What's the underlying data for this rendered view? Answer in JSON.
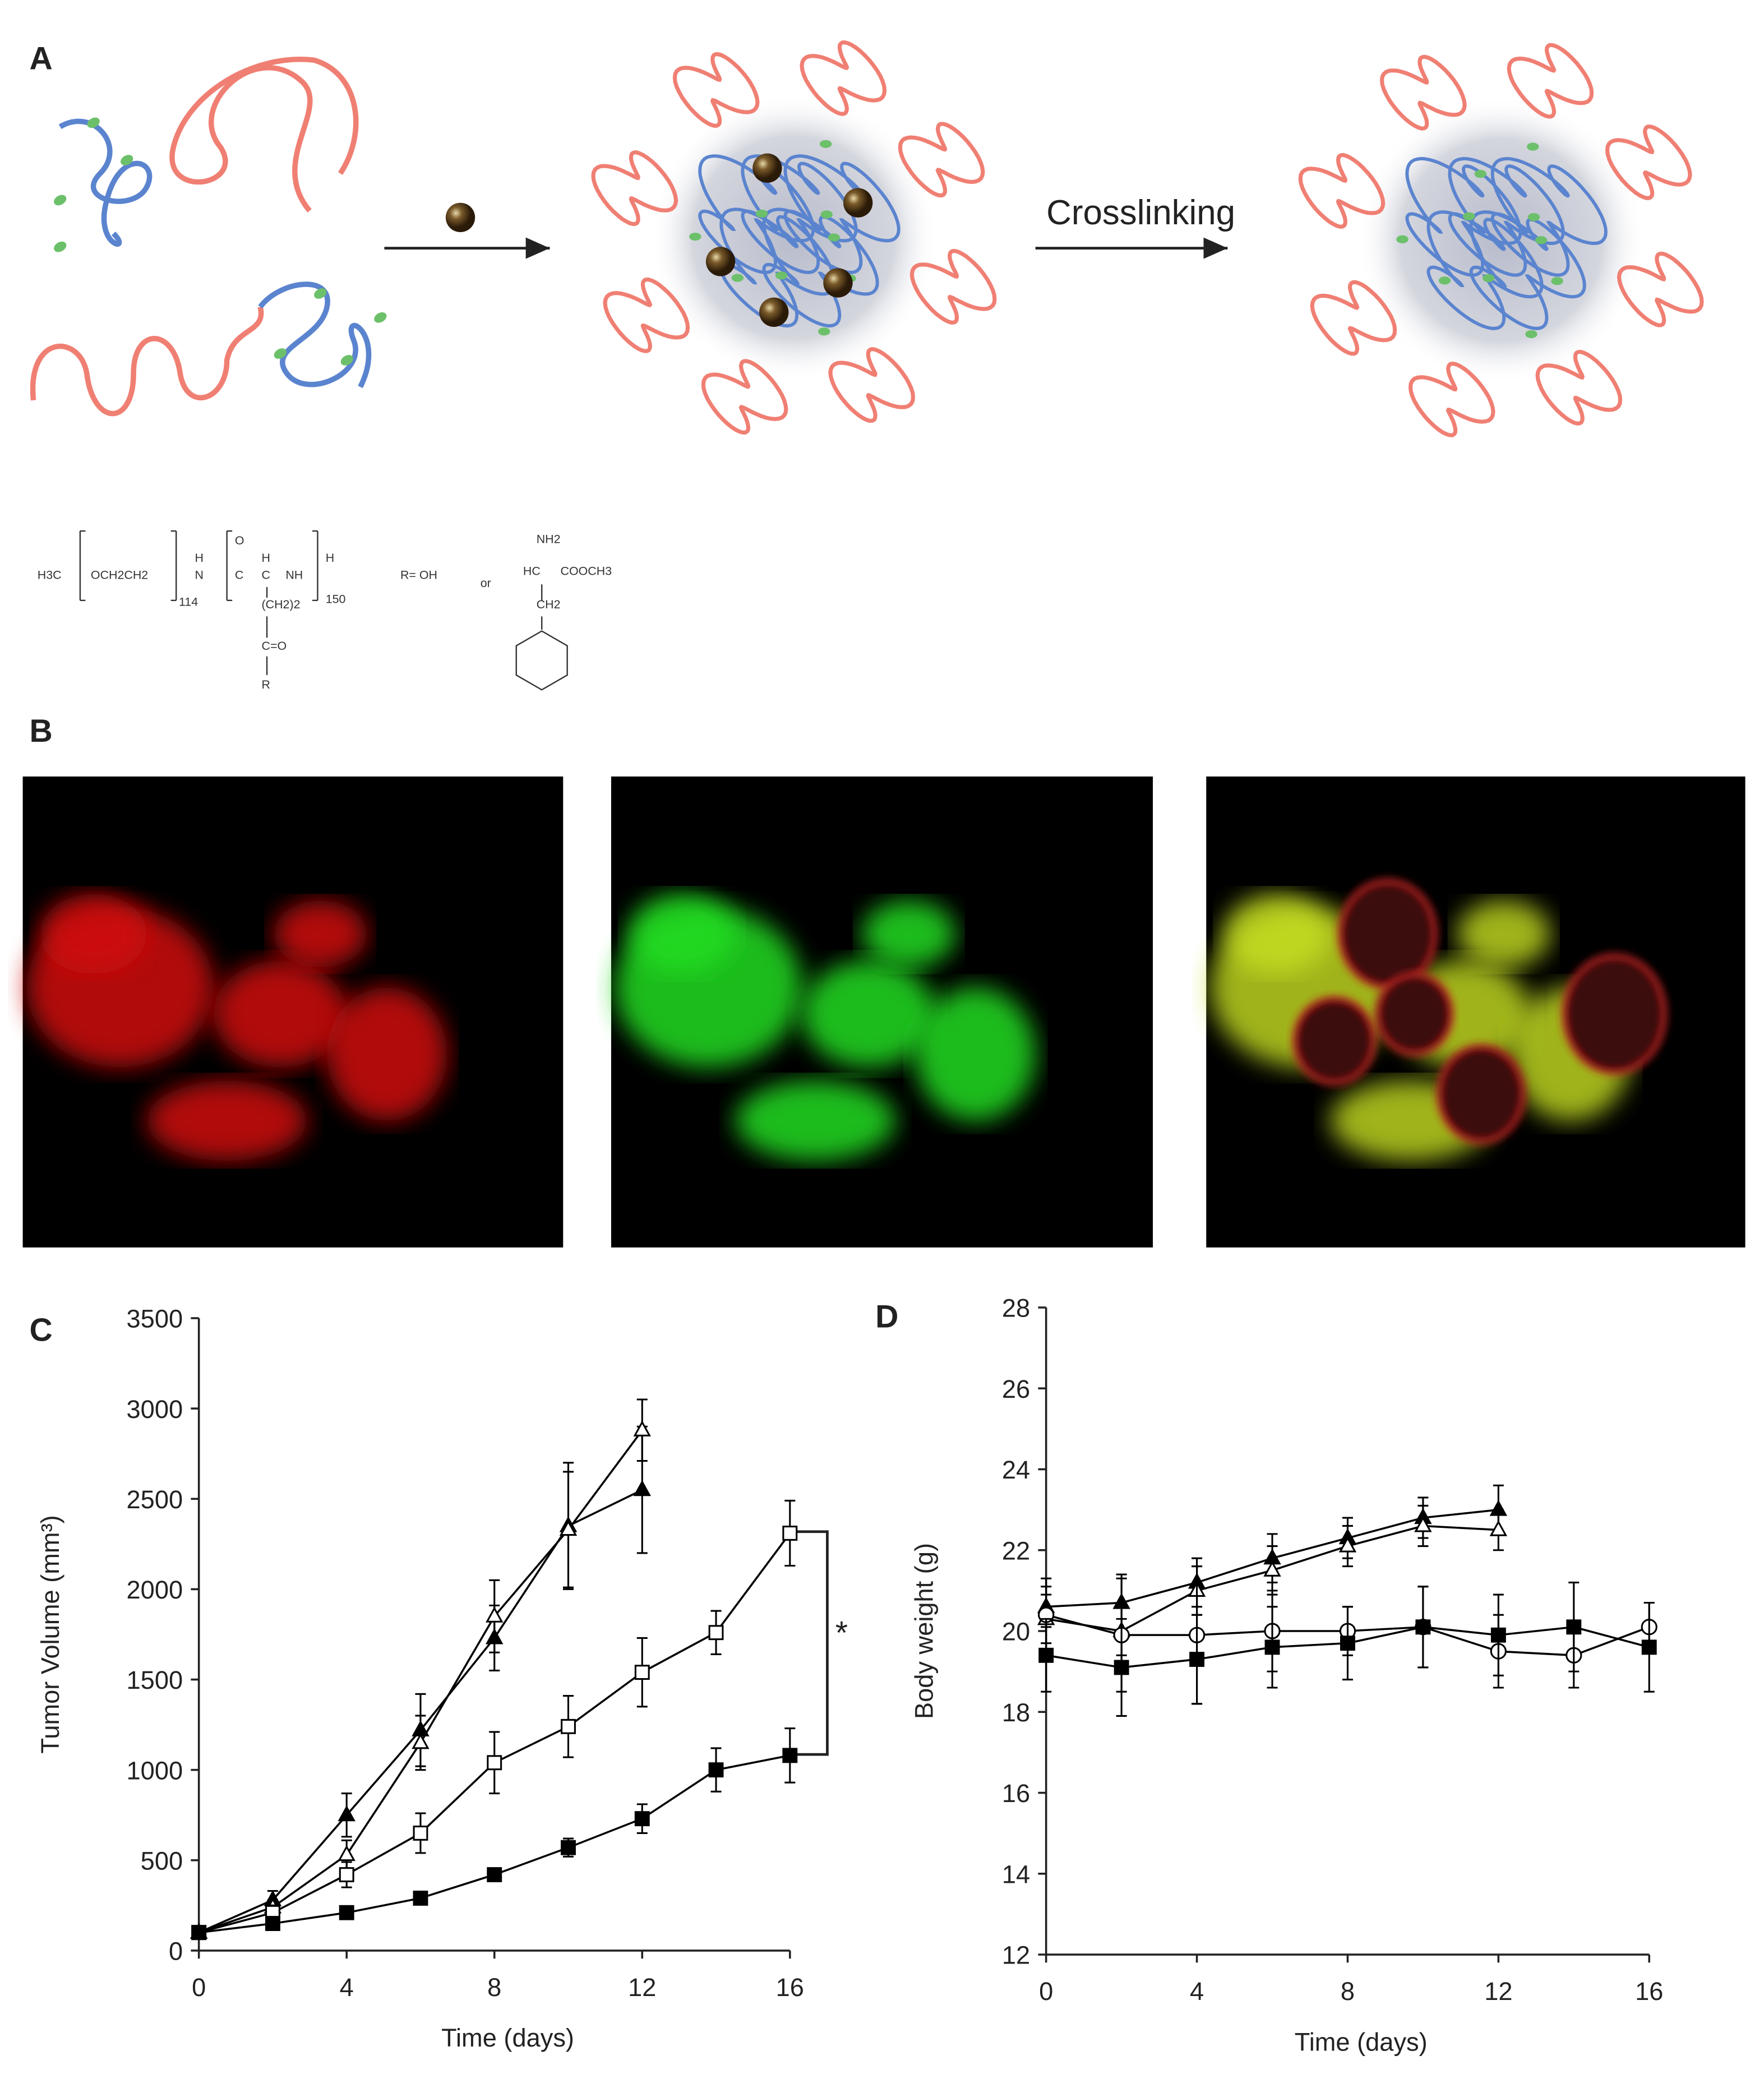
{
  "panels": {
    "A": {
      "label": "A",
      "arrow_label": "Crosslinking",
      "formula": [
        "H3C",
        "OCH2CH2",
        "114",
        "H",
        "N",
        "O",
        "C",
        "H",
        "C",
        "NH",
        "150",
        "H",
        "(CH2)2",
        "C=O",
        "R",
        "R= OH",
        "or",
        "NH2",
        "HC",
        "COOCH3",
        "CH2"
      ]
    },
    "B": {
      "label": "B"
    }
  },
  "chart_data": [
    {
      "type": "line",
      "label": "C",
      "xlabel": "Time (days)",
      "ylabel": "Tumor Volume (mm³)",
      "x": [
        0,
        2,
        4,
        6,
        8,
        10,
        12,
        14,
        16
      ],
      "xlim": [
        0,
        16
      ],
      "xticks": [
        0,
        4,
        8,
        12,
        16
      ],
      "ylim": [
        0,
        3500
      ],
      "yticks": [
        0,
        500,
        1000,
        1500,
        2000,
        2500,
        3000,
        3500
      ],
      "annotation": "*",
      "series": [
        {
          "color": "#000000",
          "marker": "triangle",
          "filled": true,
          "values": [
            100,
            280,
            750,
            1220,
            1730,
            2350,
            2550,
            null,
            null
          ],
          "errors": [
            20,
            50,
            120,
            200,
            180,
            350,
            350,
            null,
            null
          ]
        },
        {
          "color": "#000000",
          "marker": "triangle",
          "filled": false,
          "values": [
            100,
            240,
            530,
            1150,
            1850,
            2330,
            2880,
            null,
            null
          ],
          "errors": [
            20,
            40,
            80,
            150,
            200,
            320,
            170,
            null,
            null
          ]
        },
        {
          "color": "#000000",
          "marker": "square",
          "filled": false,
          "values": [
            100,
            210,
            420,
            650,
            1040,
            1240,
            1540,
            1760,
            2310
          ],
          "errors": [
            20,
            40,
            70,
            110,
            170,
            170,
            190,
            120,
            180
          ]
        },
        {
          "color": "#000000",
          "marker": "square",
          "filled": true,
          "values": [
            100,
            150,
            210,
            290,
            420,
            570,
            730,
            1000,
            1080
          ],
          "errors": [
            10,
            20,
            20,
            20,
            30,
            50,
            80,
            120,
            150
          ]
        }
      ]
    },
    {
      "type": "line",
      "label": "D",
      "xlabel": "Time (days)",
      "ylabel": "Body weight (g)",
      "x": [
        0,
        2,
        4,
        6,
        8,
        10,
        12,
        14,
        16
      ],
      "xlim": [
        0,
        16
      ],
      "xticks": [
        0,
        4,
        8,
        12,
        16
      ],
      "ylim": [
        12,
        28
      ],
      "yticks": [
        12,
        14,
        16,
        18,
        20,
        22,
        24,
        26,
        28
      ],
      "series": [
        {
          "color": "#000000",
          "marker": "triangle",
          "filled": true,
          "values": [
            20.6,
            20.7,
            21.2,
            21.8,
            22.3,
            22.8,
            23.0,
            null,
            null
          ],
          "errors": [
            0.5,
            0.7,
            0.6,
            0.6,
            0.5,
            0.5,
            0.6,
            null,
            null
          ]
        },
        {
          "color": "#000000",
          "marker": "triangle",
          "filled": false,
          "values": [
            20.3,
            20.0,
            21.0,
            21.5,
            22.1,
            22.6,
            22.5,
            null,
            null
          ],
          "errors": [
            0.6,
            0.6,
            0.6,
            0.6,
            0.5,
            0.5,
            0.5,
            null,
            null
          ]
        },
        {
          "color": "#000000",
          "marker": "circle",
          "filled": false,
          "values": [
            20.4,
            19.9,
            19.9,
            20.0,
            20.0,
            20.1,
            19.5,
            19.4,
            20.1
          ],
          "errors": [
            0.9,
            1.4,
            1.7,
            1.0,
            0.6,
            1.0,
            0.9,
            0.8,
            0.6
          ]
        },
        {
          "color": "#000000",
          "marker": "square",
          "filled": true,
          "values": [
            19.4,
            19.1,
            19.3,
            19.6,
            19.7,
            20.1,
            19.9,
            20.1,
            19.6
          ],
          "errors": [
            0.9,
            1.2,
            1.1,
            1.0,
            0.9,
            1.0,
            1.0,
            1.1,
            1.1
          ]
        }
      ]
    }
  ]
}
